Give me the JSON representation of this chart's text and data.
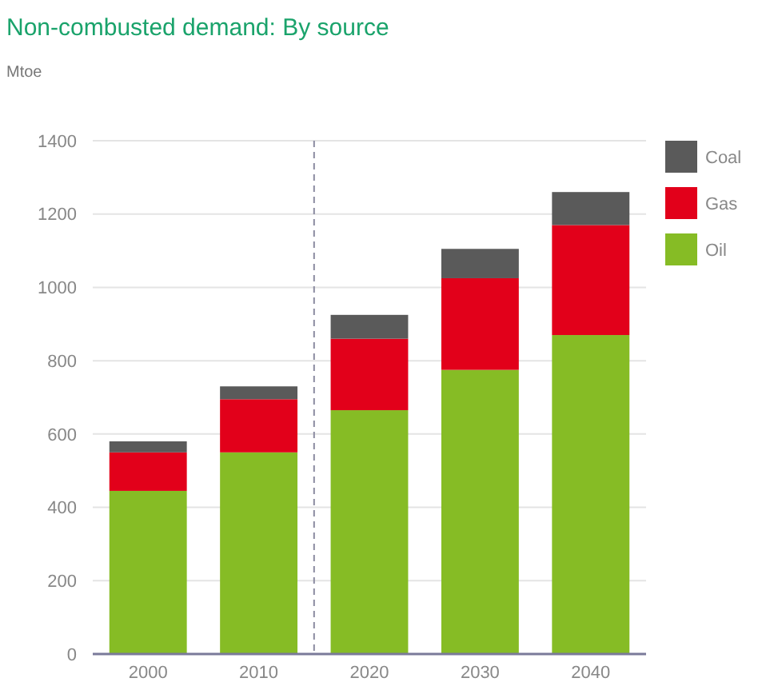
{
  "chart_data": {
    "type": "bar",
    "title": "Non-combusted demand: By source",
    "ylabel": "Mtoe",
    "categories": [
      "2000",
      "2010",
      "2020",
      "2030",
      "2040"
    ],
    "stacked": true,
    "series": [
      {
        "name": "Oil",
        "color": "#86bc25",
        "values": [
          445,
          550,
          665,
          775,
          870
        ]
      },
      {
        "name": "Gas",
        "color": "#e2001a",
        "values": [
          105,
          145,
          195,
          250,
          300
        ]
      },
      {
        "name": "Coal",
        "color": "#5a5a5a",
        "values": [
          30,
          35,
          65,
          80,
          90
        ]
      }
    ],
    "ylim": [
      0,
      1400
    ],
    "yticks": [
      0,
      200,
      400,
      600,
      800,
      1000,
      1200,
      1400
    ],
    "grid": "y",
    "legend": "top right"
  }
}
